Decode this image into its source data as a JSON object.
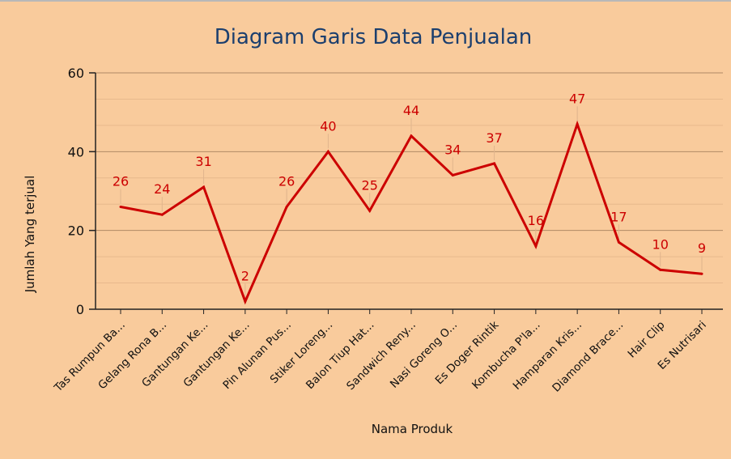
{
  "chart_data": {
    "type": "line",
    "title": "Diagram Garis Data Penjualan",
    "xlabel": "Nama Produk",
    "ylabel": "Jumlah Yang terjual",
    "ylim": [
      0,
      60
    ],
    "yticks": [
      "0",
      "20",
      "40",
      "60"
    ],
    "grid": true,
    "legend": "none",
    "line_color": "#cc0000",
    "categories": [
      "Tas Rumpun Ba...",
      "Gelang Rona B...",
      "Gantungan Ke...",
      "Gantungan Ke...",
      "Pin Alunan Pus...",
      "Stiker Loreng...",
      "Balon Tiup Hat...",
      "Sandwich Reny...",
      "Nasi Goreng O...",
      "Es Doger Rintik",
      "Kombucha P'la...",
      "Hamparan Kris...",
      "Diamond Brace...",
      "Hair Clip",
      "Es Nutrisari"
    ],
    "series": [
      {
        "values": [
          26,
          24,
          31,
          2,
          26,
          40,
          25,
          44,
          34,
          37,
          16,
          47,
          17,
          10,
          9
        ]
      }
    ]
  }
}
